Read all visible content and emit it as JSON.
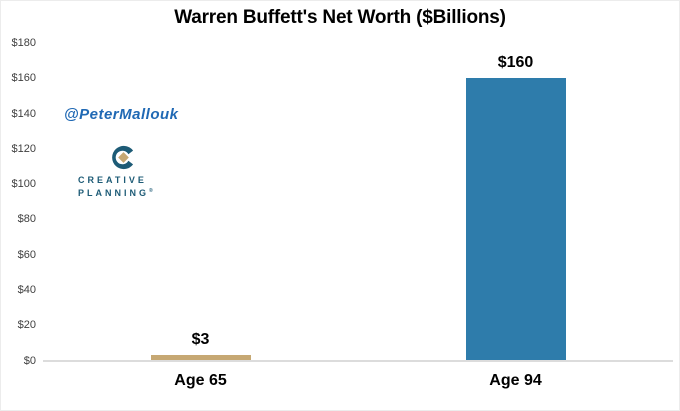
{
  "title": "Warren Buffett's Net Worth ($Billions)",
  "watermark": "@PeterMallouk",
  "logo": {
    "line1": "CREATIVE",
    "line2": "PLANNING",
    "registered": "®",
    "icon": "creative-planning-c-diamond-icon",
    "teal": "#1d5b76",
    "gold": "#c6a873"
  },
  "colors": {
    "bar_blue": "#2e7cab",
    "bar_tan": "#c6a873",
    "axis_line": "#dcdcdc",
    "tick_text": "#404040",
    "watermark_blue": "#2069b4"
  },
  "chart_data": {
    "type": "bar",
    "title": "Warren Buffett's Net Worth ($Billions)",
    "categories": [
      "Age 65",
      "Age 94"
    ],
    "values": [
      3,
      160
    ],
    "bar_labels": [
      "$3",
      "$160"
    ],
    "bar_colors": [
      "#c6a873",
      "#2e7cab"
    ],
    "xlabel": "",
    "ylabel": "",
    "ylim": [
      0,
      180
    ],
    "ytick_step": 20,
    "ytick_values": [
      0,
      20,
      40,
      60,
      80,
      100,
      120,
      140,
      160,
      180
    ],
    "ytick_labels": [
      "$0",
      "$20",
      "$40",
      "$60",
      "$80",
      "$100",
      "$120",
      "$140",
      "$160",
      "$180"
    ],
    "grid": false,
    "legend": false
  }
}
